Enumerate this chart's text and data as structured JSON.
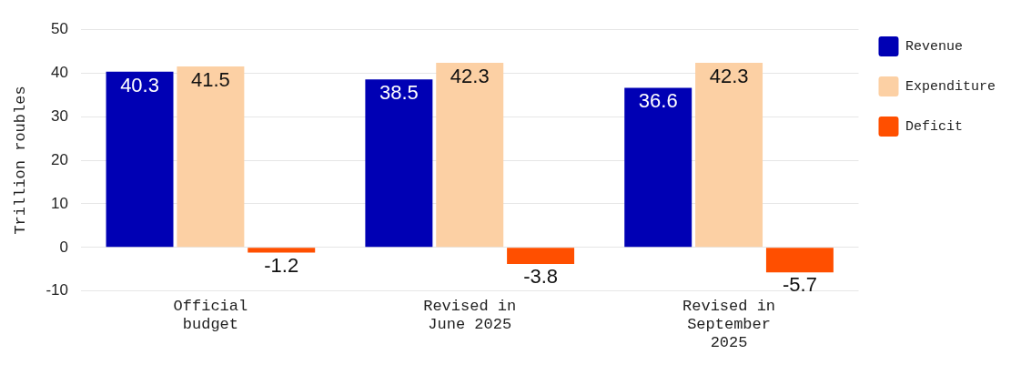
{
  "chart_data": {
    "type": "bar",
    "ylabel": "Trillion roubles",
    "categories": [
      "Official budget",
      "Revised in June 2025",
      "Revised in September 2025"
    ],
    "series": [
      {
        "name": "Revenue",
        "color": "#0000b4",
        "values": [
          40.3,
          38.5,
          36.6
        ]
      },
      {
        "name": "Expenditure",
        "color": "#fcd0a4",
        "values": [
          41.5,
          42.3,
          42.3
        ]
      },
      {
        "name": "Deficit",
        "color": "#ff4f00",
        "values": [
          -1.2,
          -3.8,
          -5.7
        ]
      }
    ],
    "ylim": [
      -10,
      50
    ],
    "yticks": [
      -10,
      0,
      10,
      20,
      30,
      40,
      50
    ],
    "grid": "y",
    "legend": "top right",
    "data_labels": true
  }
}
